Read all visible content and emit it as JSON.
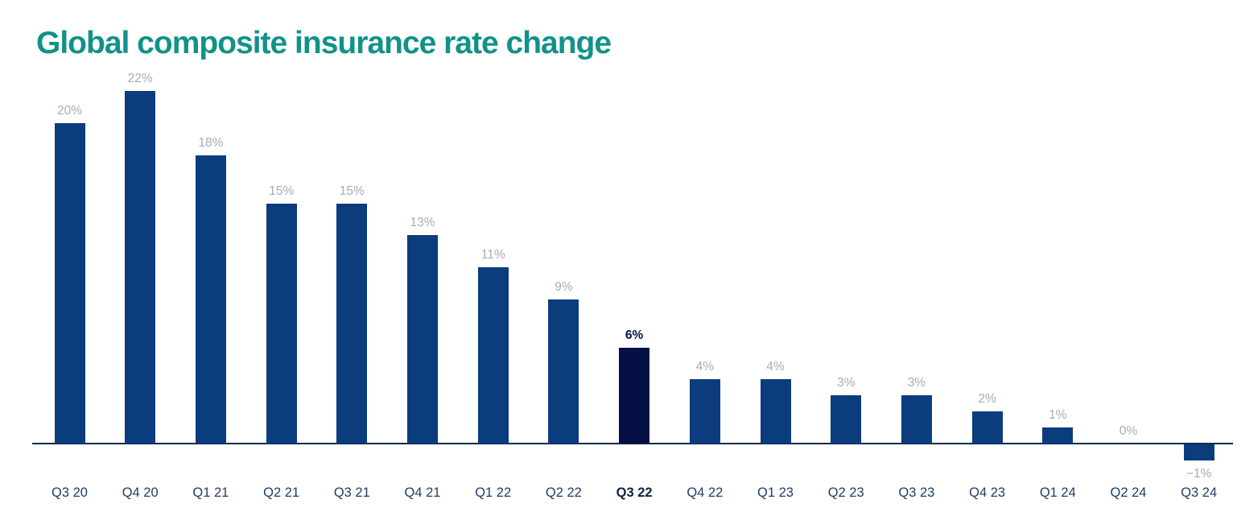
{
  "title": "Global composite insurance rate change",
  "colors": {
    "title": "#119288",
    "bar": "#0B3C7D",
    "bar_highlight": "#041045",
    "value_label": "#A4ABB9",
    "value_label_highlight": "#041045",
    "axis_line": "#0F2B4C",
    "axis_label": "#1F3D66",
    "axis_label_highlight": "#0C2340"
  },
  "chart_data": {
    "type": "bar",
    "title": "Global composite insurance rate change",
    "categories": [
      "Q3 20",
      "Q4 20",
      "Q1 21",
      "Q2 21",
      "Q3 21",
      "Q4 21",
      "Q1 22",
      "Q2 22",
      "Q3 22",
      "Q4 22",
      "Q1 23",
      "Q2 23",
      "Q3 23",
      "Q4 23",
      "Q1 24",
      "Q2 24",
      "Q3 24"
    ],
    "values": [
      20,
      22,
      18,
      15,
      15,
      13,
      11,
      9,
      6,
      4,
      4,
      3,
      3,
      2,
      1,
      0,
      -1
    ],
    "value_labels": [
      "20%",
      "22%",
      "18%",
      "15%",
      "15%",
      "13%",
      "11%",
      "9%",
      "6%",
      "4%",
      "4%",
      "3%",
      "3%",
      "2%",
      "1%",
      "0%",
      "−1%"
    ],
    "highlight_index": 8,
    "highlight_category": "Q3 22",
    "xlabel": "",
    "ylabel": "",
    "ylim": [
      -2,
      24
    ],
    "grid": false,
    "legend": null,
    "data_labels_shown": true
  }
}
